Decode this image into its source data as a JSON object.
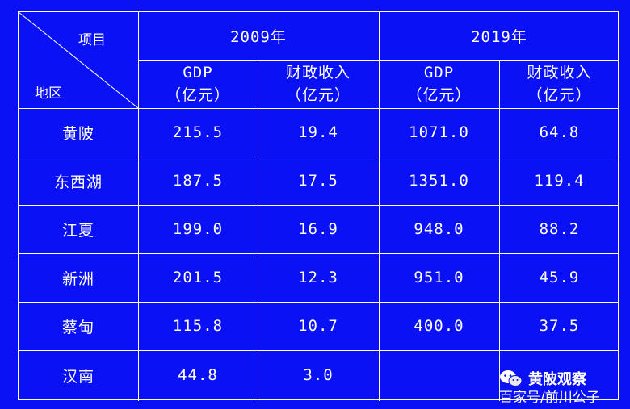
{
  "header": {
    "item_label": "项目",
    "region_label": "地区",
    "year_2009": "2009年",
    "year_2019": "2019年",
    "gdp_label": "GDP",
    "revenue_label": "财政收入",
    "unit_label": "（亿元）"
  },
  "rows": [
    {
      "region": "黄陂",
      "gdp_2009": "215.5",
      "rev_2009": "19.4",
      "gdp_2019": "1071.0",
      "rev_2019": "64.8"
    },
    {
      "region": "东西湖",
      "gdp_2009": "187.5",
      "rev_2009": "17.5",
      "gdp_2019": "1351.0",
      "rev_2019": "119.4"
    },
    {
      "region": "江夏",
      "gdp_2009": "199.0",
      "rev_2009": "16.9",
      "gdp_2019": "948.0",
      "rev_2019": "88.2"
    },
    {
      "region": "新洲",
      "gdp_2009": "201.5",
      "rev_2009": "12.3",
      "gdp_2019": "951.0",
      "rev_2019": "45.9"
    },
    {
      "region": "蔡甸",
      "gdp_2009": "115.8",
      "rev_2009": "10.7",
      "gdp_2019": "400.0",
      "rev_2019": "37.5"
    },
    {
      "region": "汉南",
      "gdp_2009": "44.8",
      "rev_2009": "3.0",
      "gdp_2019": "",
      "rev_2019": ""
    }
  ],
  "watermark": {
    "brand": "黄陂观察",
    "sub": "百家号/前川公子",
    "icon": "wechat-bubbles-icon"
  },
  "colors": {
    "background": "#0a12f5",
    "lines": "#ffffff",
    "text": "#ffffff"
  }
}
